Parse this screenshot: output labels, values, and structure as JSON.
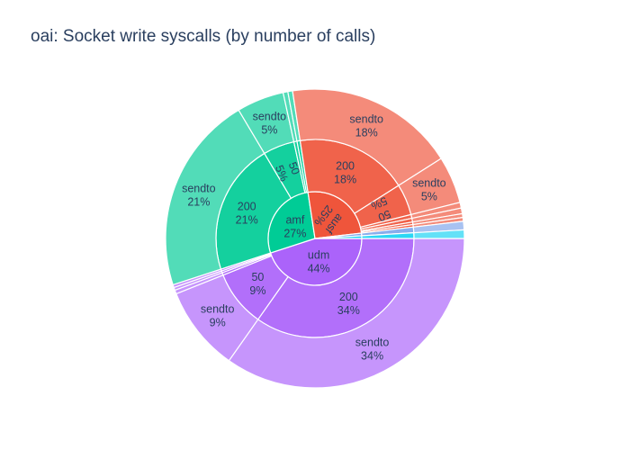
{
  "chart_data": {
    "type": "sunburst",
    "title": "oai: Socket write syscalls (by number of calls)",
    "rings": [
      "service",
      "size",
      "syscall"
    ],
    "sort": "value-desc",
    "colors": {
      "udm": "#ab63fa",
      "amf": "#00cc96",
      "ausf": "#ef553b",
      "other": "#7fa6ea",
      "cyan": "#19d3f3"
    },
    "nodes": [
      {
        "label": "udm",
        "percent": 44,
        "color_key": "udm",
        "children": [
          {
            "label": "200",
            "percent": 34,
            "children": [
              {
                "label": "sendto",
                "percent": 34
              }
            ]
          },
          {
            "label": "50",
            "percent": 9,
            "children": [
              {
                "label": "sendto",
                "percent": 9
              }
            ]
          },
          {
            "label": "",
            "percent": 0.4,
            "children": [
              {
                "label": "",
                "percent": 0.4
              }
            ]
          },
          {
            "label": "",
            "percent": 0.3,
            "children": [
              {
                "label": "",
                "percent": 0.3
              }
            ]
          },
          {
            "label": "",
            "percent": 0.3,
            "children": [
              {
                "label": "",
                "percent": 0.3
              }
            ]
          }
        ]
      },
      {
        "label": "amf",
        "percent": 27,
        "color_key": "amf",
        "children": [
          {
            "label": "200",
            "percent": 21,
            "children": [
              {
                "label": "sendto",
                "percent": 21
              }
            ]
          },
          {
            "label": "50",
            "percent": 5,
            "children": [
              {
                "label": "sendto",
                "percent": 5
              }
            ]
          },
          {
            "label": "",
            "percent": 0.5,
            "children": [
              {
                "label": "",
                "percent": 0.5
              }
            ]
          },
          {
            "label": "",
            "percent": 0.5,
            "children": [
              {
                "label": "",
                "percent": 0.5
              }
            ]
          }
        ]
      },
      {
        "label": "ausf",
        "percent": 25,
        "color_key": "ausf",
        "children": [
          {
            "label": "200",
            "percent": 18,
            "children": [
              {
                "label": "sendto",
                "percent": 18
              }
            ]
          },
          {
            "label": "50",
            "percent": 5,
            "children": [
              {
                "label": "sendto",
                "percent": 5
              }
            ]
          },
          {
            "label": "",
            "percent": 0.6,
            "children": [
              {
                "label": "",
                "percent": 0.6
              }
            ]
          },
          {
            "label": "",
            "percent": 0.6,
            "children": [
              {
                "label": "",
                "percent": 0.6
              }
            ]
          },
          {
            "label": "",
            "percent": 0.4,
            "children": [
              {
                "label": "",
                "percent": 0.4
              }
            ]
          },
          {
            "label": "",
            "percent": 0.4,
            "children": [
              {
                "label": "",
                "percent": 0.4
              }
            ]
          }
        ]
      },
      {
        "label": "",
        "percent": 0.9,
        "color_key": "other",
        "children": [
          {
            "label": "",
            "percent": 0.9,
            "children": [
              {
                "label": "",
                "percent": 0.9
              }
            ]
          }
        ]
      },
      {
        "label": "",
        "percent": 0.9,
        "color_key": "cyan",
        "children": [
          {
            "label": "",
            "percent": 0.9,
            "children": [
              {
                "label": "",
                "percent": 0.9
              }
            ]
          }
        ]
      }
    ]
  }
}
